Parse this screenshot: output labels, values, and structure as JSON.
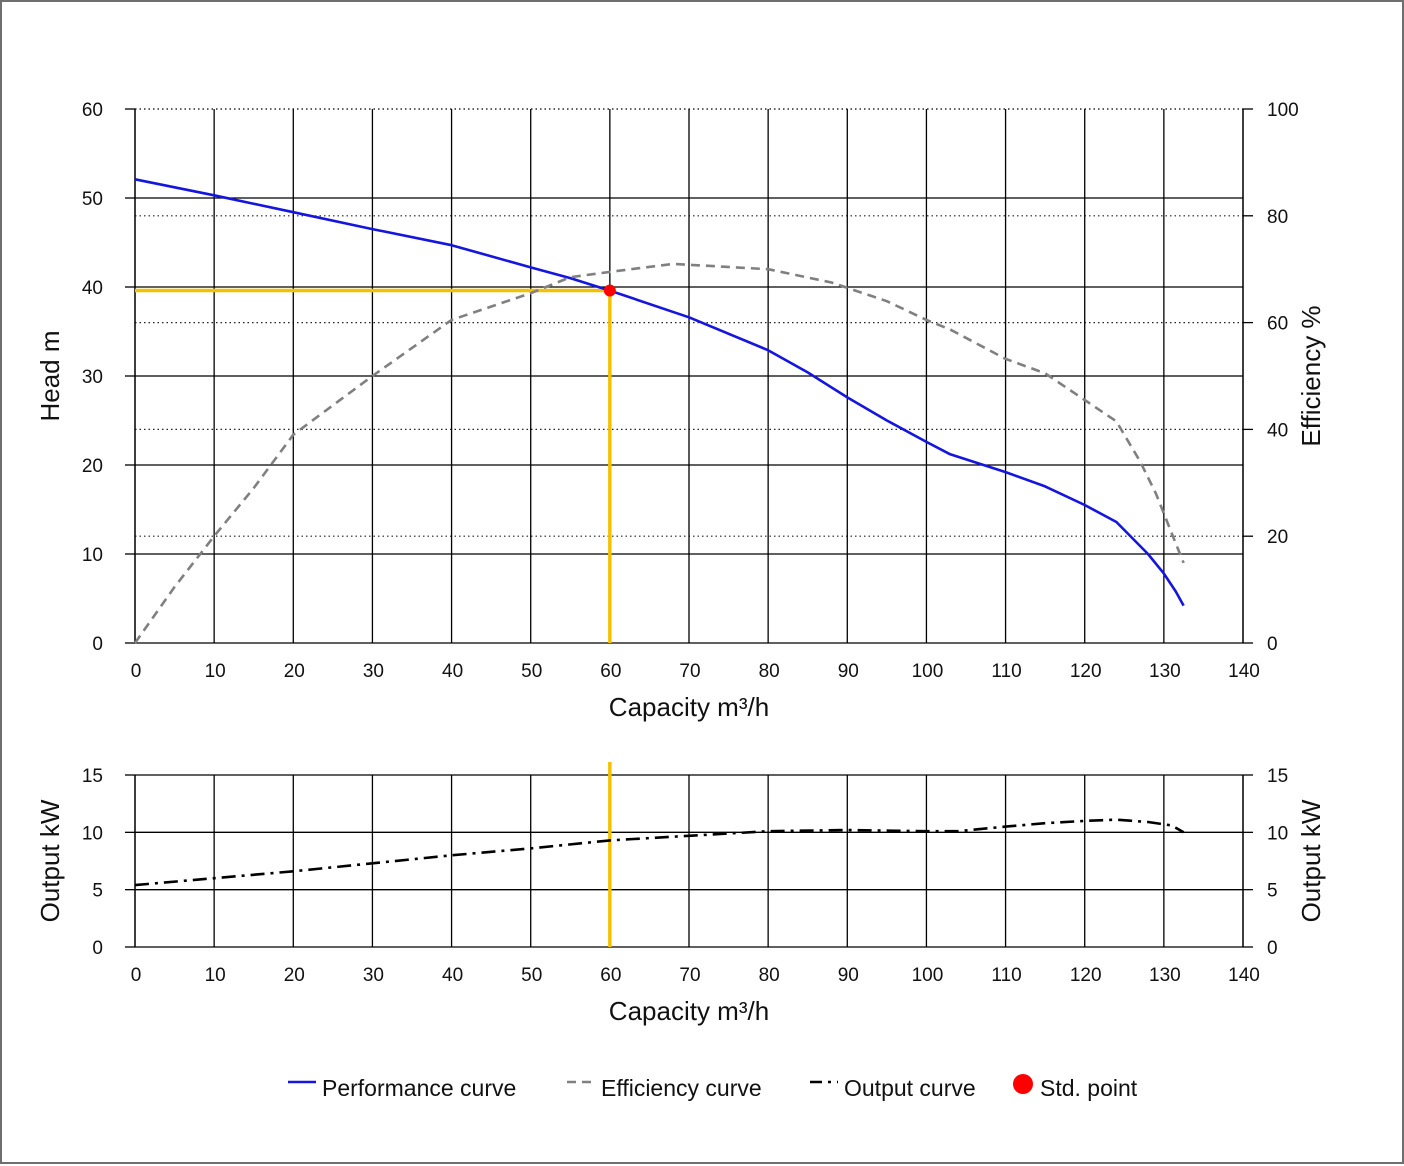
{
  "chart_data": [
    {
      "id": "main",
      "type": "line",
      "xlabel": "Capacity m³/h",
      "ylabel_left": "Head m",
      "ylabel_right": "Efficiency %",
      "xlim": [
        0,
        140
      ],
      "x_ticks": [
        0,
        10,
        20,
        30,
        40,
        50,
        60,
        70,
        80,
        90,
        100,
        110,
        120,
        130,
        140
      ],
      "ylim_left": [
        0,
        60
      ],
      "y_ticks_left": [
        0,
        10,
        20,
        30,
        40,
        50,
        60
      ],
      "ylim_right": [
        0,
        100
      ],
      "y_ticks_right": [
        0,
        20,
        40,
        60,
        80,
        100
      ],
      "grid": true,
      "series": [
        {
          "name": "Performance curve",
          "axis": "left",
          "color": "#1515e0",
          "style": "solid",
          "points": [
            [
              0,
              52.1
            ],
            [
              10,
              50.3
            ],
            [
              20,
              48.4
            ],
            [
              30,
              46.5
            ],
            [
              40,
              44.7
            ],
            [
              50,
              42.2
            ],
            [
              55,
              41.0
            ],
            [
              60,
              39.6
            ],
            [
              70,
              36.6
            ],
            [
              80,
              32.9
            ],
            [
              85,
              30.4
            ],
            [
              90,
              27.6
            ],
            [
              95,
              25.0
            ],
            [
              100,
              22.6
            ],
            [
              103,
              21.2
            ],
            [
              110,
              19.2
            ],
            [
              115,
              17.6
            ],
            [
              120,
              15.5
            ],
            [
              124,
              13.6
            ],
            [
              128,
              10.0
            ],
            [
              130,
              7.8
            ],
            [
              131.5,
              5.8
            ],
            [
              132.5,
              4.2
            ]
          ]
        },
        {
          "name": "Efficiency curve",
          "axis": "right",
          "color": "#808080",
          "style": "dashed",
          "points": [
            [
              0,
              0
            ],
            [
              5,
              10.5
            ],
            [
              10,
              20
            ],
            [
              15,
              29
            ],
            [
              20,
              39
            ],
            [
              30,
              50
            ],
            [
              40,
              60.5
            ],
            [
              50,
              65.5
            ],
            [
              55,
              68.5
            ],
            [
              60,
              69.5
            ],
            [
              68,
              71
            ],
            [
              80,
              70
            ],
            [
              88,
              67.5
            ],
            [
              95,
              64
            ],
            [
              100,
              60.5
            ],
            [
              103,
              58.7
            ],
            [
              110,
              53.2
            ],
            [
              115,
              50.5
            ],
            [
              120,
              45.5
            ],
            [
              124,
              41.5
            ],
            [
              127,
              34
            ],
            [
              129,
              28
            ],
            [
              131,
              20.5
            ],
            [
              132.5,
              15
            ]
          ]
        }
      ],
      "std_point": {
        "name": "Std. point",
        "x": 60,
        "y": 39.6,
        "color": "#ff0000"
      },
      "guide_color": "#f2c200"
    },
    {
      "id": "output",
      "type": "line",
      "xlabel": "Capacity m³/h",
      "ylabel_left": "Output kW",
      "ylabel_right": "Output kW",
      "xlim": [
        0,
        140
      ],
      "x_ticks": [
        0,
        10,
        20,
        30,
        40,
        50,
        60,
        70,
        80,
        90,
        100,
        110,
        120,
        130,
        140
      ],
      "ylim": [
        0,
        15
      ],
      "y_ticks": [
        0,
        5,
        10,
        15
      ],
      "grid": true,
      "series": [
        {
          "name": "Output curve",
          "color": "#000000",
          "style": "dashdot",
          "points": [
            [
              0,
              5.4
            ],
            [
              10,
              6.0
            ],
            [
              20,
              6.6
            ],
            [
              30,
              7.3
            ],
            [
              40,
              8.0
            ],
            [
              50,
              8.6
            ],
            [
              60,
              9.3
            ],
            [
              70,
              9.7
            ],
            [
              80,
              10.1
            ],
            [
              90,
              10.2
            ],
            [
              100,
              10.1
            ],
            [
              104,
              10.1
            ],
            [
              110,
              10.5
            ],
            [
              115,
              10.8
            ],
            [
              120,
              11.0
            ],
            [
              124,
              11.1
            ],
            [
              128,
              10.9
            ],
            [
              131,
              10.6
            ],
            [
              132.5,
              10.0
            ]
          ]
        }
      ],
      "guide_x": 60,
      "guide_color": "#f2c200"
    }
  ],
  "legend": {
    "placement": "bottom-center",
    "items": [
      {
        "label": "Performance curve",
        "color": "#1515e0",
        "marker": "line"
      },
      {
        "label": "Efficiency curve",
        "color": "#808080",
        "marker": "dashed-line"
      },
      {
        "label": "Output curve",
        "color": "#000000",
        "marker": "dashdot-line"
      },
      {
        "label": "Std. point",
        "color": "#ff0000",
        "marker": "dot"
      }
    ]
  }
}
